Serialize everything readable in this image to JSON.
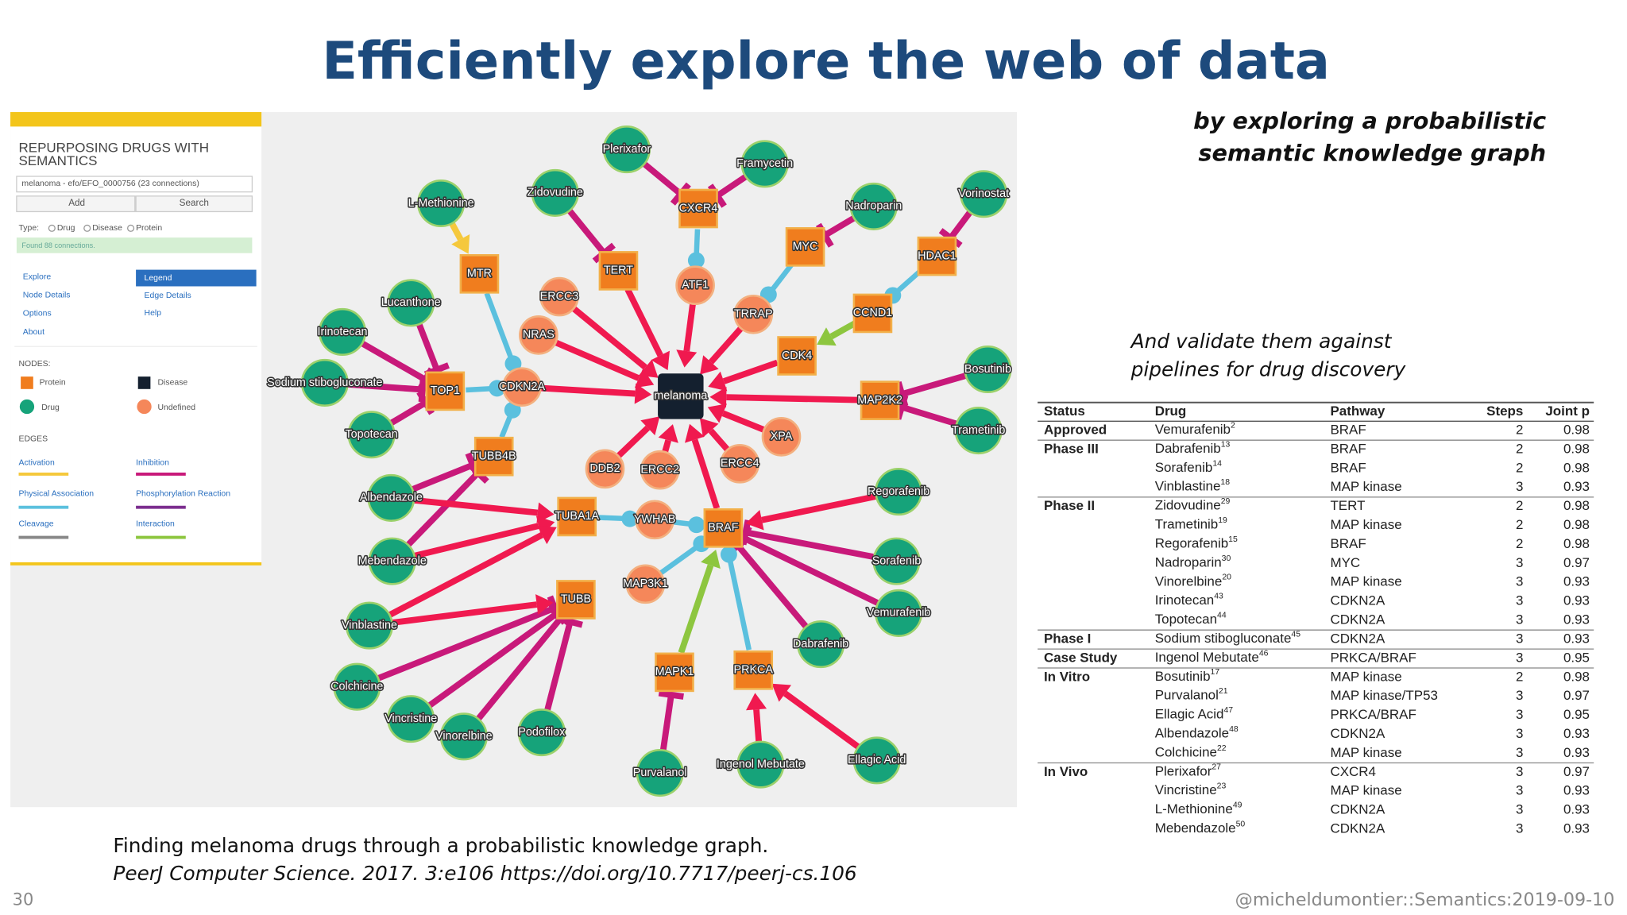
{
  "title": "Efficiently explore the web of data",
  "subtitle": {
    "lines": [
      "by exploring a probabilistic",
      "semantic knowledge graph"
    ]
  },
  "note": {
    "lines": [
      "And validate them against",
      "pipelines for drug discovery"
    ]
  },
  "app_panel": {
    "title_lines": [
      "REPURPOSING DRUGS WITH",
      "SEMANTICS"
    ],
    "search_value": "melanoma - efo/EFO_0000756 (23 connections)",
    "buttons": [
      "Add",
      "Search"
    ],
    "type_label": "Type:",
    "type_options": [
      "Drug",
      "Disease",
      "Protein"
    ],
    "status": "Found 88 connections.",
    "menu_left": [
      "Explore",
      "Node Details",
      "Options",
      "About"
    ],
    "menu_right": [
      "Legend",
      "Edge Details",
      "Help"
    ],
    "nodes_heading": "NODES:",
    "node_types": [
      "Protein",
      "Disease",
      "Drug",
      "Undefined"
    ],
    "edges_heading": "EDGES",
    "edge_types": [
      "Activation",
      "Inhibition",
      "Physical Association",
      "Phosphorylation Reaction",
      "Cleavage",
      "Interaction"
    ]
  },
  "graph": {
    "nodes": [
      "melanoma",
      "CXCR4",
      "TERT",
      "MTR",
      "MYC",
      "HDAC1",
      "CCND1",
      "CDK4",
      "MAP2K2",
      "TOP1",
      "TUBB4B",
      "TUBA1A",
      "BRAF",
      "TUBB",
      "MAPK1",
      "PRKCA",
      "ERCC3",
      "NRAS",
      "CDKN2A",
      "ATF1",
      "TRRAP",
      "XPA",
      "ERCC4",
      "ERCC2",
      "DDB2",
      "YWHAB",
      "MAP3K1",
      "Plerixafor",
      "Framycetin",
      "Zidovudine",
      "L-Methionine",
      "Nadroparin",
      "Vorinostat",
      "Lucanthone",
      "Irinotecan",
      "Sodium stibogluconate",
      "Topotecan",
      "Bosutinib",
      "Trametinib",
      "Albendazole",
      "Regorafenib",
      "Mebendazole",
      "Sorafenib",
      "Vinblastine",
      "Vemurafenib",
      "Dabrafenib",
      "Colchicine",
      "Vincristine",
      "Vinorelbine",
      "Podofilox",
      "Purvalanol",
      "Ingenol Mebutate",
      "Ellagic Acid"
    ]
  },
  "table": {
    "columns": [
      "Status",
      "Drug",
      "Pathway",
      "Steps",
      "Joint p"
    ],
    "groups": [
      {
        "status": "Approved",
        "rows": [
          {
            "drug": "Vemurafenib",
            "ref": "2",
            "pathway": "BRAF",
            "steps": 2,
            "p": 0.98
          }
        ]
      },
      {
        "status": "Phase III",
        "rows": [
          {
            "drug": "Dabrafenib",
            "ref": "13",
            "pathway": "BRAF",
            "steps": 2,
            "p": 0.98
          },
          {
            "drug": "Sorafenib",
            "ref": "14",
            "pathway": "BRAF",
            "steps": 2,
            "p": 0.98
          },
          {
            "drug": "Vinblastine",
            "ref": "18",
            "pathway": "MAP kinase",
            "steps": 3,
            "p": 0.93
          }
        ]
      },
      {
        "status": "Phase II",
        "rows": [
          {
            "drug": "Zidovudine",
            "ref": "29",
            "pathway": "TERT",
            "steps": 2,
            "p": 0.98
          },
          {
            "drug": "Trametinib",
            "ref": "19",
            "pathway": "MAP kinase",
            "steps": 2,
            "p": 0.98
          },
          {
            "drug": "Regorafenib",
            "ref": "15",
            "pathway": "BRAF",
            "steps": 2,
            "p": 0.98
          },
          {
            "drug": "Nadroparin",
            "ref": "30",
            "pathway": "MYC",
            "steps": 3,
            "p": 0.97
          },
          {
            "drug": "Vinorelbine",
            "ref": "20",
            "pathway": "MAP kinase",
            "steps": 3,
            "p": 0.93
          },
          {
            "drug": "Irinotecan",
            "ref": "43",
            "pathway": "CDKN2A",
            "steps": 3,
            "p": 0.93
          },
          {
            "drug": "Topotecan",
            "ref": "44",
            "pathway": "CDKN2A",
            "steps": 3,
            "p": 0.93
          }
        ]
      },
      {
        "status": "Phase I",
        "rows": [
          {
            "drug": "Sodium stibogluconate",
            "ref": "45",
            "pathway": "CDKN2A",
            "steps": 3,
            "p": 0.93
          }
        ]
      },
      {
        "status": "Case Study",
        "rows": [
          {
            "drug": "Ingenol Mebutate",
            "ref": "46",
            "pathway": "PRKCA/BRAF",
            "steps": 3,
            "p": 0.95
          }
        ]
      },
      {
        "status": "In Vitro",
        "rows": [
          {
            "drug": "Bosutinib",
            "ref": "17",
            "pathway": "MAP kinase",
            "steps": 2,
            "p": 0.98
          },
          {
            "drug": "Purvalanol",
            "ref": "21",
            "pathway": "MAP kinase/TP53",
            "steps": 3,
            "p": 0.97
          },
          {
            "drug": "Ellagic Acid",
            "ref": "47",
            "pathway": "PRKCA/BRAF",
            "steps": 3,
            "p": 0.95
          },
          {
            "drug": "Albendazole",
            "ref": "48",
            "pathway": "CDKN2A",
            "steps": 3,
            "p": 0.93
          },
          {
            "drug": "Colchicine",
            "ref": "22",
            "pathway": "MAP kinase",
            "steps": 3,
            "p": 0.93
          }
        ]
      },
      {
        "status": "In Vivo",
        "rows": [
          {
            "drug": "Plerixafor",
            "ref": "27",
            "pathway": "CXCR4",
            "steps": 3,
            "p": 0.97
          },
          {
            "drug": "Vincristine",
            "ref": "23",
            "pathway": "MAP kinase",
            "steps": 3,
            "p": 0.93
          },
          {
            "drug": "L-Methionine",
            "ref": "49",
            "pathway": "CDKN2A",
            "steps": 3,
            "p": 0.93
          },
          {
            "drug": "Mebendazole",
            "ref": "50",
            "pathway": "CDKN2A",
            "steps": 3,
            "p": 0.93
          }
        ]
      }
    ]
  },
  "citation": {
    "line1": "Finding melanoma drugs through a probabilistic knowledge graph.",
    "line2": "PeerJ Computer Science. 2017. 3:e106 https://doi.org/10.7717/peerj-cs.106"
  },
  "footer": {
    "page": 30,
    "handle": "@micheldumontier::Semantics:2019-09-10"
  }
}
